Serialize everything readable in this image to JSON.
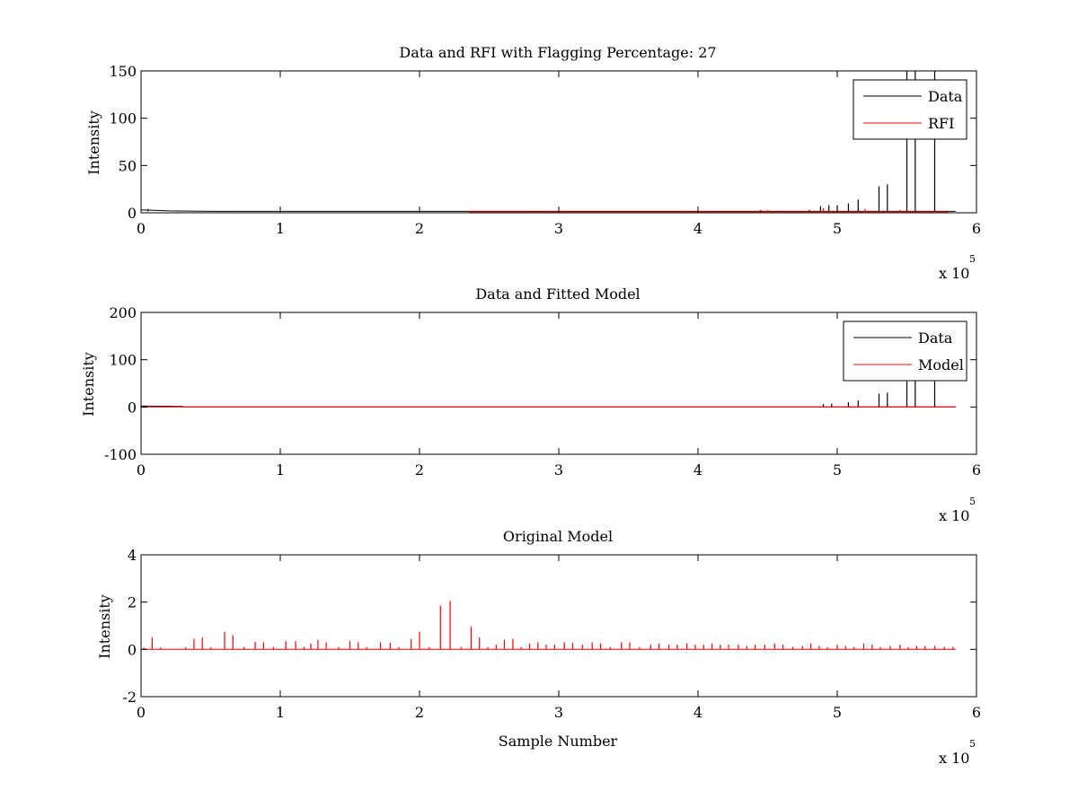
{
  "figure": {
    "background": "#ffffff",
    "axis_color": "#000000",
    "colors": {
      "data": "#000000",
      "rfi": "#ff0000",
      "model": "#ff0000"
    }
  },
  "chart_data": [
    {
      "type": "line",
      "title": "Data and RFI with Flagging Percentage: 27",
      "xlabel": "",
      "ylabel": "Intensity",
      "xlim": [
        0,
        6
      ],
      "ylim": [
        0,
        150
      ],
      "x_multiplier": "x 10",
      "x_multiplier_exp": "5",
      "xticks": [
        0,
        1,
        2,
        3,
        4,
        5,
        6
      ],
      "yticks": [
        0,
        50,
        100,
        150
      ],
      "grid": false,
      "legend": {
        "placement": "top-right",
        "entries": [
          {
            "label": "Data",
            "color": "#000000"
          },
          {
            "label": "RFI",
            "color": "#ff0000"
          }
        ]
      },
      "series": [
        {
          "name": "Data",
          "color": "#000000",
          "baseline": [
            [
              0,
              3
            ],
            [
              0.2,
              2
            ],
            [
              0.5,
              1.5
            ],
            [
              5.85,
              1.5
            ]
          ],
          "spikes": [
            [
              0.05,
              4
            ],
            [
              0.25,
              2.5
            ],
            [
              0.45,
              2
            ],
            [
              0.65,
              2
            ],
            [
              4.45,
              3
            ],
            [
              4.6,
              2
            ],
            [
              4.8,
              3
            ],
            [
              4.88,
              7
            ],
            [
              4.94,
              8
            ],
            [
              5.0,
              8
            ],
            [
              5.08,
              10
            ],
            [
              5.15,
              14
            ],
            [
              5.3,
              28
            ],
            [
              5.36,
              30
            ],
            [
              5.5,
              150
            ],
            [
              5.56,
              150
            ],
            [
              5.7,
              150
            ]
          ]
        },
        {
          "name": "RFI",
          "color": "#ff0000",
          "baseline": [
            [
              2.35,
              1
            ],
            [
              2.75,
              1
            ],
            [
              4.4,
              1
            ],
            [
              5.8,
              1
            ]
          ],
          "spikes": [
            [
              2.4,
              2
            ],
            [
              2.55,
              1.5
            ],
            [
              2.7,
              2
            ],
            [
              4.5,
              3
            ],
            [
              4.65,
              2
            ],
            [
              4.9,
              5
            ],
            [
              5.2,
              4
            ],
            [
              5.45,
              3
            ],
            [
              5.65,
              2
            ],
            [
              5.75,
              2
            ]
          ]
        }
      ]
    },
    {
      "type": "line",
      "title": "Data and Fitted Model",
      "xlabel": "",
      "ylabel": "Intensity",
      "xlim": [
        0,
        6
      ],
      "ylim": [
        -100,
        200
      ],
      "x_multiplier": "x 10",
      "x_multiplier_exp": "5",
      "xticks": [
        0,
        1,
        2,
        3,
        4,
        5,
        6
      ],
      "yticks": [
        -100,
        0,
        100,
        200
      ],
      "grid": false,
      "legend": {
        "placement": "top-right",
        "entries": [
          {
            "label": "Data",
            "color": "#000000"
          },
          {
            "label": "Model",
            "color": "#ff0000"
          }
        ]
      },
      "series": [
        {
          "name": "Data",
          "color": "#000000",
          "baseline": [
            [
              0,
              2
            ],
            [
              0.3,
              1
            ],
            [
              0.3,
              0
            ],
            [
              5.85,
              0
            ]
          ],
          "spikes": [
            [
              4.9,
              6
            ],
            [
              4.96,
              7
            ],
            [
              5.08,
              10
            ],
            [
              5.15,
              14
            ],
            [
              5.3,
              28
            ],
            [
              5.36,
              30
            ],
            [
              5.5,
              150
            ],
            [
              5.56,
              150
            ],
            [
              5.7,
              150
            ]
          ]
        },
        {
          "name": "Model",
          "color": "#ff0000",
          "baseline": [
            [
              0,
              0
            ],
            [
              5.85,
              0
            ]
          ],
          "spikes": []
        }
      ]
    },
    {
      "type": "line",
      "title": "Original Model",
      "xlabel": "Sample Number",
      "ylabel": "Intensity",
      "xlim": [
        0,
        6
      ],
      "ylim": [
        -2,
        4
      ],
      "x_multiplier": "x 10",
      "x_multiplier_exp": "5",
      "xticks": [
        0,
        1,
        2,
        3,
        4,
        5,
        6
      ],
      "yticks": [
        -2,
        0,
        2,
        4
      ],
      "grid": false,
      "legend": null,
      "series": [
        {
          "name": "",
          "color": "#ff0000",
          "baseline": [
            [
              0,
              0
            ],
            [
              5.85,
              0
            ]
          ],
          "spikes": [
            [
              0.02,
              0.08
            ],
            [
              0.08,
              0.5
            ],
            [
              0.14,
              0.08
            ],
            [
              0.32,
              0.08
            ],
            [
              0.38,
              0.45
            ],
            [
              0.44,
              0.5
            ],
            [
              0.5,
              0.08
            ],
            [
              0.6,
              0.75
            ],
            [
              0.66,
              0.6
            ],
            [
              0.74,
              0.1
            ],
            [
              0.82,
              0.32
            ],
            [
              0.88,
              0.3
            ],
            [
              0.95,
              0.1
            ],
            [
              1.04,
              0.35
            ],
            [
              1.11,
              0.35
            ],
            [
              1.17,
              0.1
            ],
            [
              1.22,
              0.25
            ],
            [
              1.27,
              0.4
            ],
            [
              1.33,
              0.3
            ],
            [
              1.42,
              0.1
            ],
            [
              1.5,
              0.35
            ],
            [
              1.56,
              0.3
            ],
            [
              1.62,
              0.1
            ],
            [
              1.72,
              0.3
            ],
            [
              1.79,
              0.28
            ],
            [
              1.85,
              0.1
            ],
            [
              1.94,
              0.45
            ],
            [
              2.0,
              0.75
            ],
            [
              2.07,
              0.1
            ],
            [
              2.15,
              1.85
            ],
            [
              2.22,
              2.05
            ],
            [
              2.3,
              0.1
            ],
            [
              2.37,
              0.95
            ],
            [
              2.43,
              0.5
            ],
            [
              2.49,
              0.1
            ],
            [
              2.55,
              0.2
            ],
            [
              2.61,
              0.4
            ],
            [
              2.67,
              0.45
            ],
            [
              2.73,
              0.1
            ],
            [
              2.79,
              0.25
            ],
            [
              2.85,
              0.3
            ],
            [
              2.91,
              0.2
            ],
            [
              2.97,
              0.2
            ],
            [
              3.04,
              0.3
            ],
            [
              3.1,
              0.28
            ],
            [
              3.17,
              0.2
            ],
            [
              3.24,
              0.3
            ],
            [
              3.3,
              0.25
            ],
            [
              3.37,
              0.1
            ],
            [
              3.45,
              0.3
            ],
            [
              3.51,
              0.3
            ],
            [
              3.58,
              0.1
            ],
            [
              3.66,
              0.2
            ],
            [
              3.72,
              0.25
            ],
            [
              3.79,
              0.2
            ],
            [
              3.85,
              0.2
            ],
            [
              3.92,
              0.25
            ],
            [
              3.98,
              0.2
            ],
            [
              4.04,
              0.2
            ],
            [
              4.1,
              0.25
            ],
            [
              4.16,
              0.2
            ],
            [
              4.22,
              0.2
            ],
            [
              4.29,
              0.2
            ],
            [
              4.35,
              0.15
            ],
            [
              4.41,
              0.2
            ],
            [
              4.48,
              0.2
            ],
            [
              4.55,
              0.25
            ],
            [
              4.61,
              0.2
            ],
            [
              4.68,
              0.1
            ],
            [
              4.75,
              0.15
            ],
            [
              4.81,
              0.25
            ],
            [
              4.87,
              0.15
            ],
            [
              4.93,
              0.1
            ],
            [
              5.0,
              0.2
            ],
            [
              5.06,
              0.15
            ],
            [
              5.12,
              0.1
            ],
            [
              5.19,
              0.25
            ],
            [
              5.25,
              0.2
            ],
            [
              5.31,
              0.1
            ],
            [
              5.38,
              0.15
            ],
            [
              5.45,
              0.2
            ],
            [
              5.51,
              0.1
            ],
            [
              5.57,
              0.15
            ],
            [
              5.63,
              0.15
            ],
            [
              5.7,
              0.15
            ],
            [
              5.77,
              0.1
            ],
            [
              5.83,
              0.1
            ]
          ]
        }
      ]
    }
  ]
}
